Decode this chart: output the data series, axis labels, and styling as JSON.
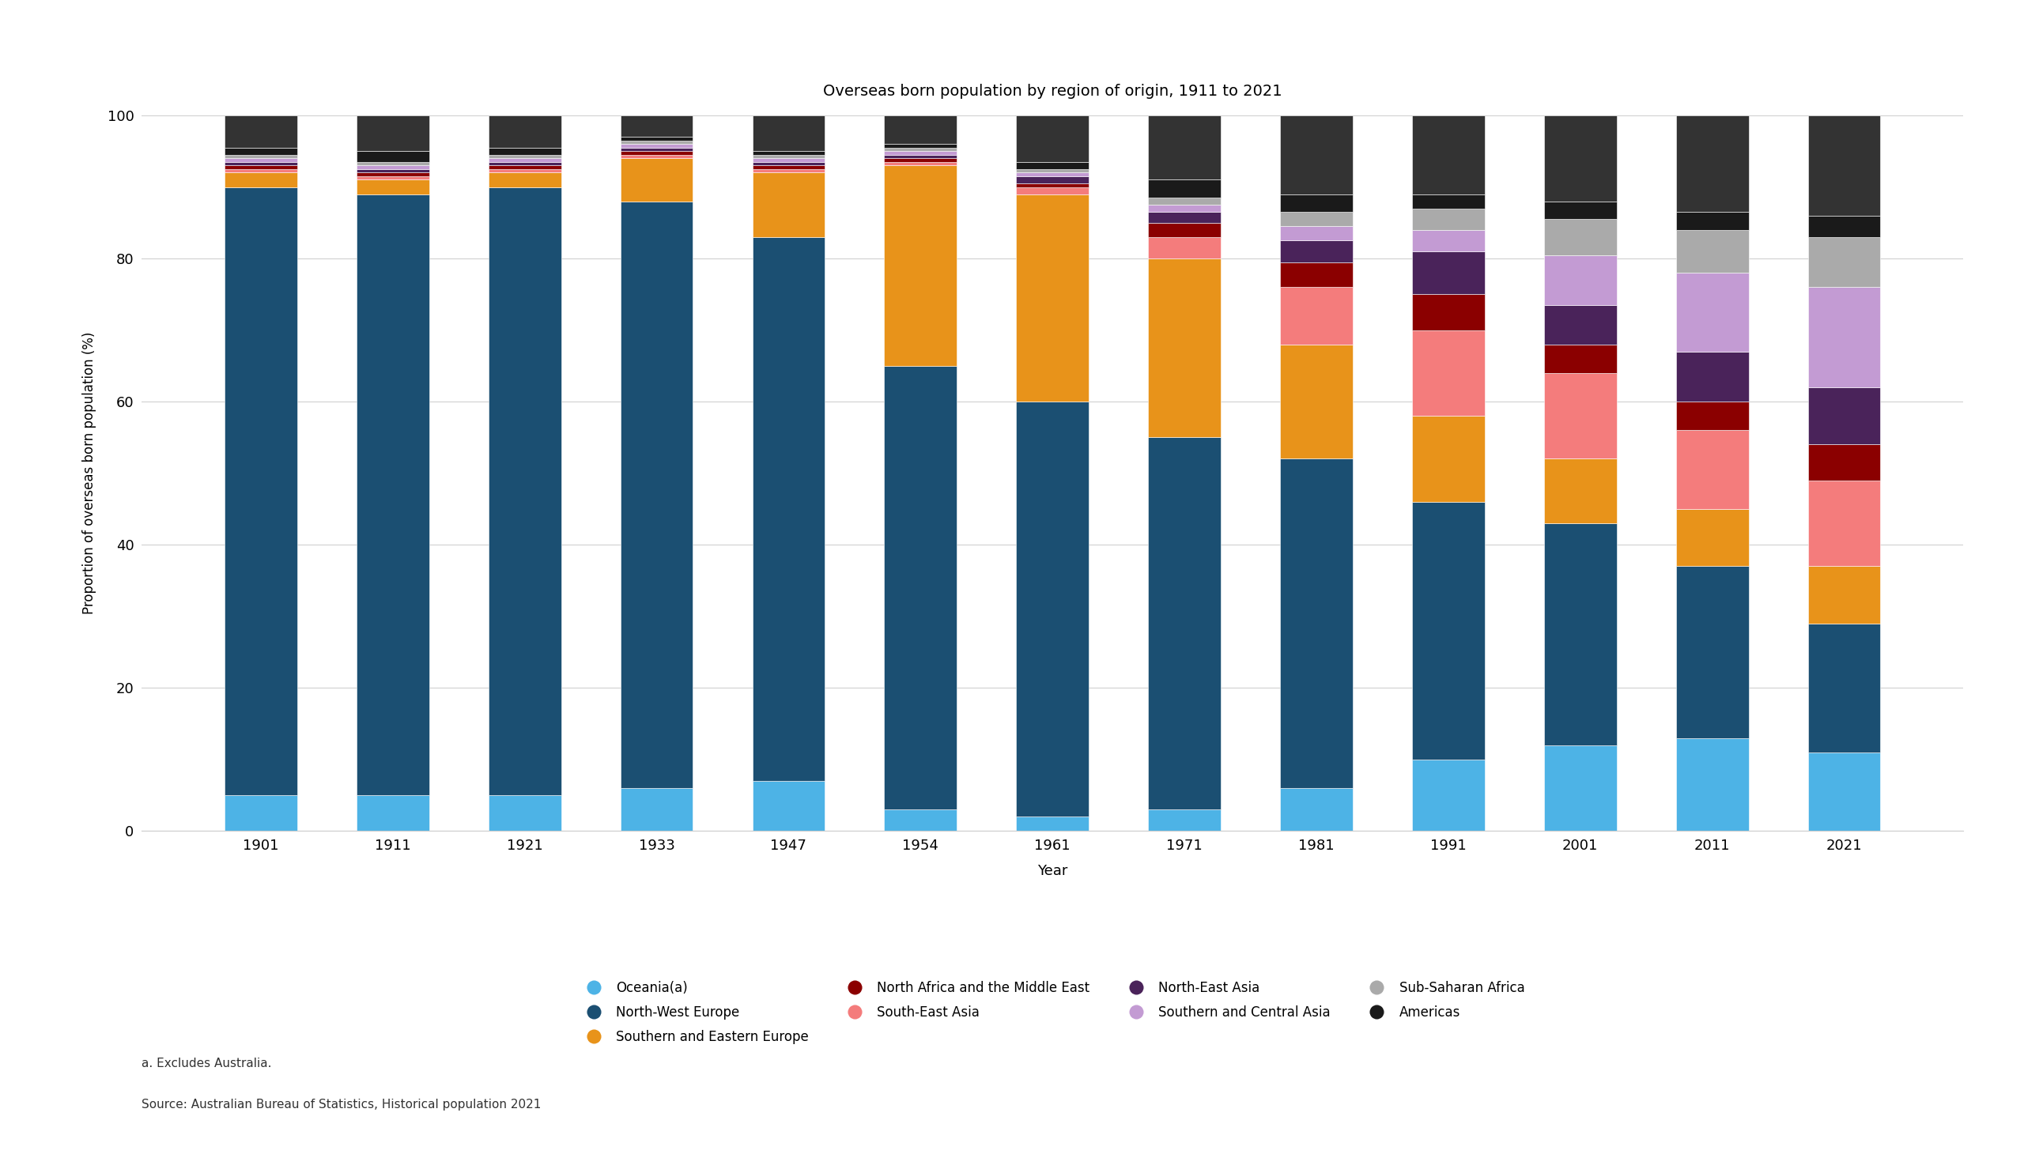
{
  "title": "Overseas born population by region of origin, 1911 to 2021",
  "xlabel": "Year",
  "ylabel": "Proportion of overseas born population (%)",
  "years": [
    "1901",
    "1911",
    "1921",
    "1933",
    "1947",
    "1954",
    "1961",
    "1971",
    "1981",
    "1991",
    "2001",
    "2011",
    "2021"
  ],
  "regions": [
    "Oceania(a)",
    "North-West Europe",
    "Southern and Eastern Europe",
    "South-East Asia",
    "North Africa and the Middle East",
    "North-East Asia",
    "Southern and Central Asia",
    "Sub-Saharan Africa",
    "Americas"
  ],
  "colors": [
    "#4db3e6",
    "#1b4f72",
    "#e8931a",
    "#f47c7c",
    "#8b0000",
    "#4a235a",
    "#c39bd3",
    "#aaaaaa",
    "#1a1a1a"
  ],
  "data": {
    "Oceania(a)": [
      5.0,
      5.0,
      5.0,
      6.0,
      7.0,
      3.0,
      2.0,
      3.0,
      6.0,
      10.0,
      12.0,
      13.0,
      11.0
    ],
    "North-West Europe": [
      85.0,
      84.0,
      85.0,
      82.0,
      76.0,
      62.0,
      58.0,
      52.0,
      46.0,
      36.0,
      31.0,
      24.0,
      18.0
    ],
    "Southern and Eastern Europe": [
      2.0,
      2.0,
      2.0,
      6.0,
      9.0,
      28.0,
      29.0,
      25.0,
      16.0,
      12.0,
      9.0,
      8.0,
      8.0
    ],
    "South-East Asia": [
      0.5,
      0.5,
      0.5,
      0.5,
      0.5,
      0.5,
      1.0,
      3.0,
      8.0,
      12.0,
      12.0,
      11.0,
      12.0
    ],
    "North Africa and the Middle East": [
      0.5,
      0.5,
      0.5,
      0.5,
      0.5,
      0.5,
      0.5,
      2.0,
      3.5,
      5.0,
      4.0,
      4.0,
      5.0
    ],
    "North-East Asia": [
      0.5,
      0.5,
      0.5,
      0.5,
      0.5,
      0.5,
      1.0,
      1.5,
      3.0,
      6.0,
      5.5,
      7.0,
      8.0
    ],
    "Southern and Central Asia": [
      0.5,
      0.5,
      0.5,
      0.5,
      0.5,
      0.5,
      0.5,
      1.0,
      2.0,
      3.0,
      7.0,
      11.0,
      14.0
    ],
    "Sub-Saharan Africa": [
      0.5,
      0.5,
      0.5,
      0.5,
      0.5,
      0.5,
      0.5,
      1.0,
      2.0,
      3.0,
      5.0,
      6.0,
      7.0
    ],
    "Americas": [
      1.0,
      1.5,
      1.0,
      0.5,
      0.5,
      0.5,
      1.0,
      2.5,
      2.5,
      2.0,
      2.5,
      2.5,
      3.0
    ],
    "Other/unspecified": [
      4.5,
      5.0,
      4.5,
      3.0,
      5.0,
      4.0,
      6.5,
      9.0,
      11.0,
      11.0,
      12.0,
      13.5,
      14.0
    ]
  },
  "footnote": "a. Excludes Australia.",
  "source": "Source: Australian Bureau of Statistics, Historical population 2021",
  "bg_color": "#ffffff",
  "grid_color": "#d0d0d0",
  "bar_width": 0.55,
  "ylim": [
    0,
    100
  ],
  "yticks": [
    0,
    20,
    40,
    60,
    80,
    100
  ],
  "legend_order": [
    "Oceania(a)",
    "North-West Europe",
    "Southern and Eastern Europe",
    "North Africa and the Middle East",
    "South-East Asia",
    "North-East Asia",
    "Southern and Central Asia",
    "Sub-Saharan Africa",
    "Americas"
  ],
  "legend_colors": {
    "Oceania(a)": "#4db3e6",
    "North-West Europe": "#1b4f72",
    "Southern and Eastern Europe": "#e8931a",
    "South-East Asia": "#f47c7c",
    "North Africa and the Middle East": "#8b0000",
    "North-East Asia": "#4a235a",
    "Southern and Central Asia": "#c39bd3",
    "Sub-Saharan Africa": "#aaaaaa",
    "Americas": "#1a1a1a"
  }
}
